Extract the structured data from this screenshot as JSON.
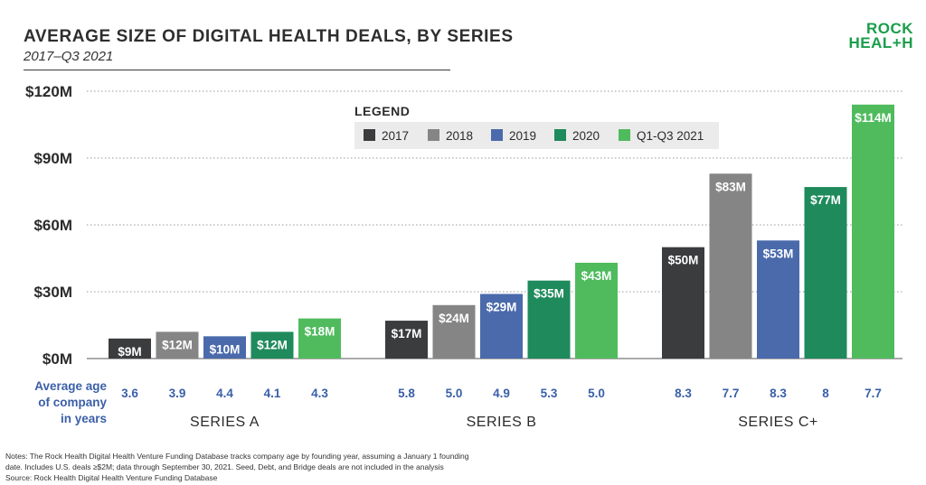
{
  "header": {
    "title": "AVERAGE SIZE OF DIGITAL HEALTH DEALS, BY SERIES",
    "subtitle": "2017–Q3 2021"
  },
  "logo": {
    "line1": "ROCK",
    "line2": "HEAL+H",
    "color": "#1a9e4b"
  },
  "legend": {
    "title": "LEGEND",
    "placement": "top-center"
  },
  "age_row": {
    "label_lines": [
      "Average age",
      "of company",
      "in years"
    ]
  },
  "notes": [
    "Notes: The Rock Health Digital Health Venture Funding Database tracks company age by founding year, assuming a January 1 founding",
    "date. Includes U.S. deals ≥$2M; data through September 30, 2021. Seed, Debt, and Bridge deals are not included in the analysis",
    "Source: Rock Health Digital Health Venture Funding Database"
  ],
  "colors": {
    "2017": "#3b3c3e",
    "2018": "#858585",
    "2019": "#4a6aab",
    "2020": "#1f8a5c",
    "Q1-Q3 2021": "#4fbb5d",
    "age_text": "#3a5fa8",
    "grid": "#9a9a9a"
  },
  "chart_data": {
    "type": "bar",
    "title": "AVERAGE SIZE OF DIGITAL HEALTH DEALS, BY SERIES",
    "subtitle": "2017–Q3 2021",
    "xlabel": "",
    "ylabel": "",
    "categories": [
      "SERIES A",
      "SERIES B",
      "SERIES C+"
    ],
    "ylim": [
      0,
      120
    ],
    "yticks": [
      0,
      30,
      60,
      90,
      120
    ],
    "ytick_labels": [
      "$0M",
      "$30M",
      "$60M",
      "$90M",
      "$120M"
    ],
    "grid": true,
    "legend_placement": "top-center",
    "series": [
      {
        "name": "2017",
        "values": [
          9,
          17,
          50
        ],
        "labels": [
          "$9M",
          "$17M",
          "$50M"
        ],
        "ages": [
          "3.6",
          "5.8",
          "8.3"
        ]
      },
      {
        "name": "2018",
        "values": [
          12,
          24,
          83
        ],
        "labels": [
          "$12M",
          "$24M",
          "$83M"
        ],
        "ages": [
          "3.9",
          "5.0",
          "7.7"
        ]
      },
      {
        "name": "2019",
        "values": [
          10,
          29,
          53
        ],
        "labels": [
          "$10M",
          "$29M",
          "$53M"
        ],
        "ages": [
          "4.4",
          "4.9",
          "8.3"
        ]
      },
      {
        "name": "2020",
        "values": [
          12,
          35,
          77
        ],
        "labels": [
          "$12M",
          "$35M",
          "$77M"
        ],
        "ages": [
          "4.1",
          "5.3",
          "8"
        ]
      },
      {
        "name": "Q1-Q3 2021",
        "values": [
          18,
          43,
          114
        ],
        "labels": [
          "$18M",
          "$43M",
          "$114M"
        ],
        "ages": [
          "4.3",
          "5.0",
          "7.7"
        ]
      }
    ]
  }
}
